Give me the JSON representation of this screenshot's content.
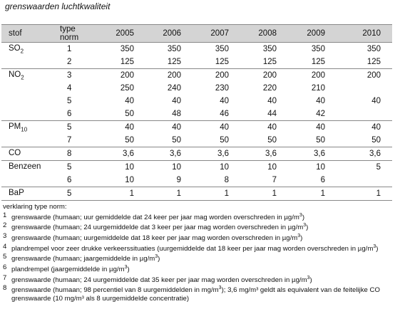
{
  "title": "grenswaarden luchtkwaliteit",
  "table": {
    "headers": [
      "stof",
      "type norm",
      "2005",
      "2006",
      "2007",
      "2008",
      "2009",
      "2010"
    ],
    "rows": [
      {
        "stof": "SO",
        "sub": "2",
        "type": "1",
        "v": [
          "350",
          "350",
          "350",
          "350",
          "350",
          "350"
        ]
      },
      {
        "stof": "",
        "sub": "",
        "type": "2",
        "v": [
          "125",
          "125",
          "125",
          "125",
          "125",
          "125"
        ]
      },
      {
        "stof": "NO",
        "sub": "2",
        "type": "3",
        "v": [
          "200",
          "200",
          "200",
          "200",
          "200",
          "200"
        ]
      },
      {
        "stof": "",
        "sub": "",
        "type": "4",
        "v": [
          "250",
          "240",
          "230",
          "220",
          "210",
          ""
        ]
      },
      {
        "stof": "",
        "sub": "",
        "type": "5",
        "v": [
          "40",
          "40",
          "40",
          "40",
          "40",
          "40"
        ]
      },
      {
        "stof": "",
        "sub": "",
        "type": "6",
        "v": [
          "50",
          "48",
          "46",
          "44",
          "42",
          ""
        ]
      },
      {
        "stof": "PM",
        "sub": "10",
        "type": "5",
        "v": [
          "40",
          "40",
          "40",
          "40",
          "40",
          "40"
        ]
      },
      {
        "stof": "",
        "sub": "",
        "type": "7",
        "v": [
          "50",
          "50",
          "50",
          "50",
          "50",
          "50"
        ]
      },
      {
        "stof": "CO",
        "sub": "",
        "type": "8",
        "v": [
          "3,6",
          "3,6",
          "3,6",
          "3,6",
          "3,6",
          "3,6"
        ]
      },
      {
        "stof": "Benzeen",
        "sub": "",
        "type": "5",
        "v": [
          "10",
          "10",
          "10",
          "10",
          "10",
          "5"
        ]
      },
      {
        "stof": "",
        "sub": "",
        "type": "6",
        "v": [
          "10",
          "9",
          "8",
          "7",
          "6",
          ""
        ]
      },
      {
        "stof": "BaP",
        "sub": "",
        "type": "5",
        "v": [
          "1",
          "1",
          "1",
          "1",
          "1",
          "1"
        ]
      }
    ]
  },
  "legend": {
    "heading": "verklaring type norm:",
    "items": [
      {
        "num": "1",
        "text": "grenswaarde (humaan; uur gemiddelde dat 24 keer per jaar mag worden overschreden in µg/m",
        "sup": "3",
        "tail": ")"
      },
      {
        "num": "2",
        "text": "grenswaarde (humaan; 24 uurgemiddelde dat 3 keer per jaar mag worden overschreden in µg/m",
        "sup": "3",
        "tail": ")"
      },
      {
        "num": "3",
        "text": "grenswaarde (humaan; uurgemiddelde dat 18 keer per jaar mag worden overschreden in µg/m",
        "sup": "3",
        "tail": ")"
      },
      {
        "num": "4",
        "text": "plandrempel voor zeer drukke verkeerssituaties (uurgemiddelde dat 18 keer per jaar mag worden overschreden in µg/m",
        "sup": "3",
        "tail": ")"
      },
      {
        "num": "5",
        "text": "grenswaarde (humaan; jaargemiddelde in µg/m",
        "sup": "3",
        "tail": ")"
      },
      {
        "num": "6",
        "text": "plandrempel (jaargemiddelde in µg/m",
        "sup": "3",
        "tail": ")"
      },
      {
        "num": "7",
        "text": "grenswaarde (humaan; 24 uurgemiddelde dat 35 keer per jaar mag worden overschreden in µg/m",
        "sup": "3",
        "tail": ")"
      },
      {
        "num": "8",
        "text": "grenswaarde (humaan; 98 percentiel van 8 uurgemiddelden in mg/m",
        "sup": "3",
        "tail": "); 3,6 mg/m³ geldt als equivalent van de feitelijke CO grenswaarde (10 mg/m³ als 8 uurgemiddelde concentratie)"
      }
    ]
  }
}
